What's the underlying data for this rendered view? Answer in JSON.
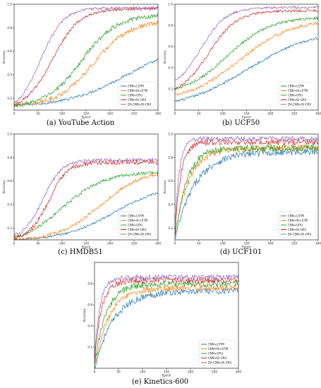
{
  "chart_data": [
    {
      "type": "line",
      "caption": "(a) YouTube Action",
      "xlabel": "Epoch",
      "ylabel": "Accuracy",
      "xlim": [
        0,
        300
      ],
      "ylim": [
        0.1,
        1.0
      ],
      "x_ticks": [
        0,
        50,
        100,
        150,
        200,
        250,
        300
      ],
      "y_ticks": [
        0.2,
        0.4,
        0.6,
        0.8,
        1.0
      ],
      "legend_position": "lower-right",
      "grid": false,
      "curves": {
        "CNN+LSTM": {
          "start": 0.14,
          "end": 0.65,
          "mid": 230,
          "k": 60,
          "noise": 0.012
        },
        "CNN+Bi-LSTM": {
          "start": 0.14,
          "end": 0.86,
          "mid": 165,
          "k": 38,
          "noise": 0.02
        },
        "CNN+GRU": {
          "start": 0.14,
          "end": 0.91,
          "mid": 140,
          "k": 36,
          "noise": 0.02
        },
        "CNN+Bi-GRU": {
          "start": 0.15,
          "end": 0.96,
          "mid": 80,
          "k": 28,
          "noise": 0.012
        },
        "DA-CNN+Bi-GRU": {
          "start": 0.16,
          "end": 0.97,
          "mid": 55,
          "k": 24,
          "noise": 0.012
        }
      }
    },
    {
      "type": "line",
      "caption": "(b) UCF50",
      "xlabel": "Epoch",
      "ylabel": "Accuracy",
      "xlim": [
        0,
        300
      ],
      "ylim": [
        0.0,
        1.0
      ],
      "x_ticks": [
        0,
        50,
        100,
        150,
        200,
        250,
        300
      ],
      "y_ticks": [
        0.2,
        0.4,
        0.6,
        0.8,
        1.0
      ],
      "legend_position": "lower-right",
      "grid": false,
      "curves": {
        "CNN+LSTM": {
          "start": 0.08,
          "end": 0.76,
          "mid": 150,
          "k": 70,
          "noise": 0.012
        },
        "CNN+Bi-LSTM": {
          "start": 0.14,
          "end": 0.86,
          "mid": 135,
          "k": 55,
          "noise": 0.015
        },
        "CNN+GRU": {
          "start": 0.2,
          "end": 0.88,
          "mid": 110,
          "k": 45,
          "noise": 0.015
        },
        "CNN+Bi-GRU": {
          "start": 0.2,
          "end": 0.94,
          "mid": 70,
          "k": 30,
          "noise": 0.012
        },
        "DA-CNN+Bi-GRU": {
          "start": 0.28,
          "end": 0.97,
          "mid": 55,
          "k": 26,
          "noise": 0.012
        }
      }
    },
    {
      "type": "line",
      "caption": "(c) HMDB51",
      "xlabel": "Epoch",
      "ylabel": "Accuracy",
      "xlim": [
        0,
        300
      ],
      "ylim": [
        0.1,
        1.0
      ],
      "x_ticks": [
        0,
        50,
        100,
        150,
        200,
        250,
        300
      ],
      "y_ticks": [
        0.2,
        0.4,
        0.6,
        0.8,
        1.0
      ],
      "legend_position": "lower-right",
      "grid": false,
      "curves": {
        "CNN+LSTM": {
          "start": 0.1,
          "end": 0.58,
          "mid": 210,
          "k": 55,
          "noise": 0.01
        },
        "CNN+Bi-LSTM": {
          "start": 0.1,
          "end": 0.7,
          "mid": 180,
          "k": 45,
          "noise": 0.015
        },
        "CNN+GRU": {
          "start": 0.12,
          "end": 0.68,
          "mid": 100,
          "k": 45,
          "noise": 0.015
        },
        "CNN+Bi-GRU": {
          "start": 0.12,
          "end": 0.76,
          "mid": 72,
          "k": 20,
          "noise": 0.02
        },
        "DA-CNN+Bi-GRU": {
          "start": 0.14,
          "end": 0.78,
          "mid": 60,
          "k": 20,
          "noise": 0.015
        }
      }
    },
    {
      "type": "line",
      "caption": "(d) UCF101",
      "xlabel": "Epoch",
      "ylabel": "Accuracy",
      "xlim": [
        0,
        300
      ],
      "ylim": [
        0.1,
        1.0
      ],
      "x_ticks": [
        0,
        50,
        100,
        150,
        200,
        250,
        300
      ],
      "y_ticks": [
        0.2,
        0.4,
        0.6,
        0.8,
        1.0
      ],
      "legend_position": "lower-right",
      "grid": false,
      "curves": {
        "CNN+LSTM": {
          "start": 0.1,
          "end": 0.85,
          "tau": 42,
          "noise": 0.03
        },
        "CNN+Bi-LSTM": {
          "start": 0.12,
          "end": 0.88,
          "tau": 28,
          "noise": 0.03
        },
        "CNN+GRU": {
          "start": 0.12,
          "end": 0.88,
          "tau": 24,
          "noise": 0.03
        },
        "CNN+Bi-GRU": {
          "start": 0.15,
          "end": 0.93,
          "tau": 12,
          "noise": 0.025
        },
        "DA-CNN+Bi-GRU": {
          "start": 0.2,
          "end": 0.96,
          "tau": 9,
          "noise": 0.02
        }
      }
    },
    {
      "type": "line",
      "caption": "(e) Kinetics-600",
      "xlabel": "Epoch",
      "ylabel": "Accuracy",
      "xlim": [
        0,
        300
      ],
      "ylim": [
        0.0,
        1.0
      ],
      "x_ticks": [
        0,
        50,
        100,
        150,
        200,
        250,
        300
      ],
      "y_ticks": [
        0.2,
        0.4,
        0.6,
        0.8
      ],
      "legend_position": "lower-right",
      "grid": false,
      "curves": {
        "CNN+LSTM": {
          "start": 0.0,
          "end": 0.73,
          "tau": 40,
          "noise": 0.03
        },
        "CNN+Bi-LSTM": {
          "start": 0.02,
          "end": 0.76,
          "tau": 30,
          "noise": 0.03
        },
        "CNN+GRU": {
          "start": 0.02,
          "end": 0.8,
          "tau": 24,
          "noise": 0.03
        },
        "CNN+Bi-GRU": {
          "start": 0.05,
          "end": 0.83,
          "tau": 14,
          "noise": 0.03
        },
        "DA-CNN+Bi-GRU": {
          "start": 0.08,
          "end": 0.86,
          "tau": 11,
          "noise": 0.025
        }
      }
    }
  ],
  "series_names": [
    "CNN+LSTM",
    "CNN+Bi-LSTM",
    "CNN+GRU",
    "CNN+Bi-GRU",
    "DA-CNN+Bi-GRU"
  ],
  "series_colors": {
    "CNN+LSTM": "#1f77b4",
    "CNN+Bi-LSTM": "#ff7f0e",
    "CNN+GRU": "#2ca02c",
    "CNN+Bi-GRU": "#d62728",
    "DA-CNN+Bi-GRU": "#9467bd"
  }
}
